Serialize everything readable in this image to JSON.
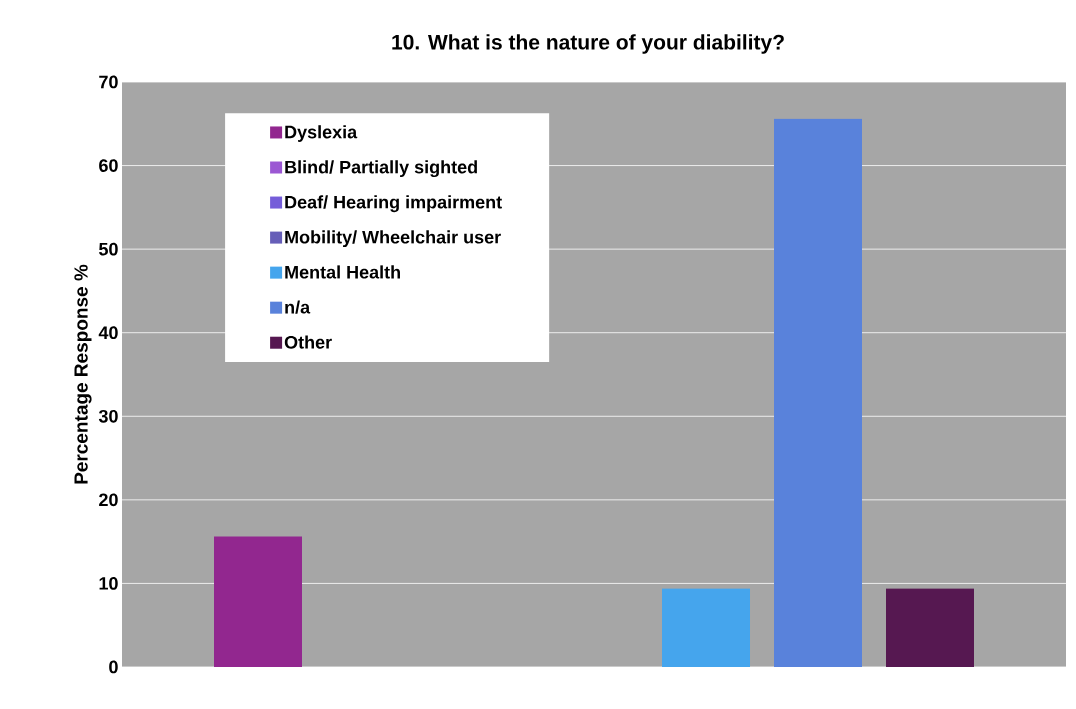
{
  "chart_data": {
    "type": "bar",
    "title": "10.  What is the nature of your diability?",
    "ylabel": "Percentage Response %",
    "categories": [
      null
    ],
    "series": [
      {
        "name": "Dyslexia",
        "color": "#92278f",
        "values": [
          15.6
        ]
      },
      {
        "name": "Blind/ Partially sighted",
        "color": "#9b57d3",
        "values": [
          0
        ]
      },
      {
        "name": "Deaf/ Hearing impairment",
        "color": "#755dd9",
        "values": [
          0
        ]
      },
      {
        "name": "Mobility/ Wheelchair user",
        "color": "#665eb8",
        "values": [
          0
        ]
      },
      {
        "name": "Mental Health",
        "color": "#45a5ed",
        "values": [
          9.4
        ]
      },
      {
        "name": "n/a",
        "color": "#5982db",
        "values": [
          65.6
        ]
      },
      {
        "name": "Other",
        "color": "#561851",
        "values": [
          9.4
        ]
      }
    ],
    "ylim": [
      0,
      70
    ],
    "yticks": [
      0,
      10,
      20,
      30,
      40,
      50,
      60,
      70
    ],
    "grid": "y",
    "legend": "top left"
  }
}
